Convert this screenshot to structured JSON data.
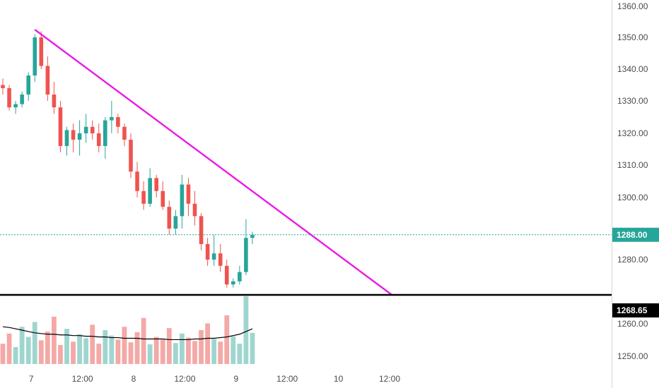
{
  "colors": {
    "up": "#26a69a",
    "down": "#ef5350",
    "volume_up": "#9ed6cf",
    "volume_down": "#f3a9a6",
    "trendline": "#e91be6",
    "support": "#000000",
    "ma": "#000000",
    "last_price": "#26a69a",
    "axis_line": "#d6d6d6",
    "axis_text": "#4a4a4a"
  },
  "chart_data": {
    "type": "candlestick",
    "y_axis": {
      "position": "right",
      "ticks": [
        "1360.00",
        "1350.00",
        "1340.00",
        "1330.00",
        "1320.00",
        "1310.00",
        "1300.00",
        "1280.00",
        "1260.00",
        "1250.00"
      ],
      "tick_values": [
        1360,
        1350,
        1340,
        1330,
        1320,
        1310,
        1300,
        1280,
        1260,
        1250
      ],
      "range": [
        1245,
        1362
      ]
    },
    "x_axis": {
      "ticks": [
        "7",
        "12:00",
        "8",
        "12:00",
        "9",
        "12:00",
        "10",
        "12:00"
      ],
      "tick_positions": [
        4,
        12,
        20,
        28,
        36,
        44,
        52,
        60
      ]
    },
    "last_price": {
      "label": "1288.00",
      "value": 1288
    },
    "support_level": {
      "label": "1268.65",
      "value": 1268.65
    },
    "trendline": {
      "start": {
        "index": 5,
        "price": 1352.5
      },
      "end": {
        "index": 60.8,
        "price": 1268.65
      }
    },
    "candles": [
      [
        1335,
        1337,
        1332,
        1334
      ],
      [
        1334,
        1335,
        1327,
        1328
      ],
      [
        1328,
        1330,
        1326,
        1329
      ],
      [
        1329,
        1333,
        1328,
        1332
      ],
      [
        1332,
        1339,
        1330,
        1338
      ],
      [
        1338,
        1351,
        1336,
        1350
      ],
      [
        1350,
        1352,
        1340,
        1341
      ],
      [
        1341,
        1344,
        1330,
        1332
      ],
      [
        1332,
        1336,
        1326,
        1328
      ],
      [
        1328,
        1330,
        1314,
        1316
      ],
      [
        1316,
        1322,
        1313,
        1321
      ],
      [
        1321,
        1323,
        1314,
        1318
      ],
      [
        1318,
        1324,
        1313,
        1320
      ],
      [
        1320,
        1326,
        1317,
        1322
      ],
      [
        1322,
        1324,
        1318,
        1320
      ],
      [
        1320,
        1323,
        1314,
        1316
      ],
      [
        1316,
        1325,
        1312,
        1324
      ],
      [
        1324,
        1330,
        1320,
        1325
      ],
      [
        1325,
        1326,
        1320,
        1322
      ],
      [
        1322,
        1323,
        1316,
        1318
      ],
      [
        1318,
        1320,
        1306,
        1308
      ],
      [
        1308,
        1311,
        1300,
        1302
      ],
      [
        1302,
        1305,
        1296,
        1298
      ],
      [
        1298,
        1309,
        1297,
        1306
      ],
      [
        1306,
        1307,
        1300,
        1302
      ],
      [
        1302,
        1305,
        1296,
        1297
      ],
      [
        1297,
        1299,
        1288,
        1290
      ],
      [
        1290,
        1296,
        1288,
        1294
      ],
      [
        1294,
        1307,
        1290,
        1304
      ],
      [
        1304,
        1306,
        1294,
        1298
      ],
      [
        1298,
        1302,
        1291,
        1294
      ],
      [
        1294,
        1295,
        1283,
        1285
      ],
      [
        1285,
        1287,
        1278,
        1280
      ],
      [
        1280,
        1288,
        1278,
        1282
      ],
      [
        1282,
        1285,
        1276,
        1278
      ],
      [
        1278,
        1280,
        1271,
        1272
      ],
      [
        1272,
        1274,
        1271,
        1273
      ],
      [
        1273,
        1278,
        1272,
        1276
      ],
      [
        1276,
        1293,
        1275,
        1287
      ],
      [
        1287,
        1289,
        1285,
        1288
      ]
    ],
    "volumes": [
      0.3,
      0.45,
      0.25,
      0.55,
      0.4,
      0.62,
      0.35,
      0.48,
      0.7,
      0.28,
      0.52,
      0.33,
      0.44,
      0.38,
      0.58,
      0.3,
      0.5,
      0.42,
      0.36,
      0.55,
      0.32,
      0.47,
      0.68,
      0.29,
      0.4,
      0.36,
      0.53,
      0.31,
      0.45,
      0.39,
      0.34,
      0.5,
      0.6,
      0.37,
      0.33,
      0.72,
      0.41,
      0.3,
      1.0,
      0.46
    ],
    "ma": [
      0.55,
      0.54,
      0.52,
      0.5,
      0.48,
      0.46,
      0.45,
      0.44,
      0.44,
      0.43,
      0.43,
      0.42,
      0.42,
      0.41,
      0.41,
      0.4,
      0.4,
      0.39,
      0.39,
      0.38,
      0.38,
      0.38,
      0.37,
      0.37,
      0.37,
      0.37,
      0.36,
      0.36,
      0.36,
      0.36,
      0.37,
      0.37,
      0.38,
      0.38,
      0.39,
      0.4,
      0.42,
      0.44,
      0.48,
      0.52
    ]
  }
}
